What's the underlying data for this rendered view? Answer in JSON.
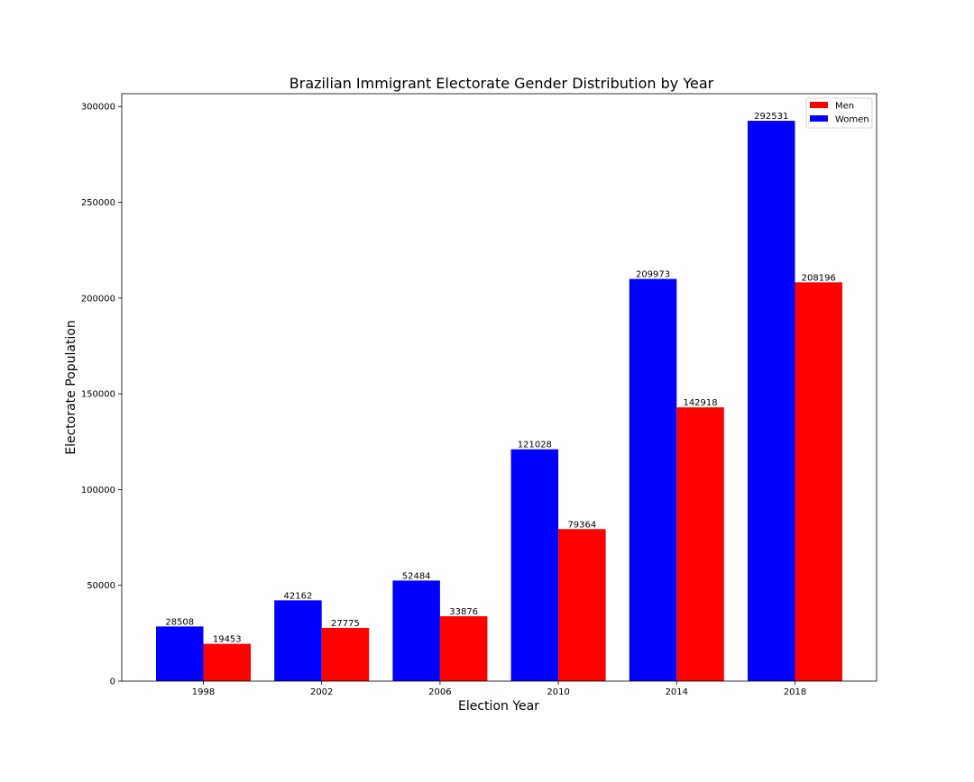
{
  "chart_data": {
    "type": "bar",
    "title": "Brazilian Immigrant Electorate Gender Distribution by Year",
    "xlabel": "Election Year",
    "ylabel": "Electorate Population",
    "categories": [
      "1998",
      "2002",
      "2006",
      "2010",
      "2014",
      "2018"
    ],
    "series": [
      {
        "name": "Women",
        "color": "#0000ff",
        "values": [
          28508,
          42162,
          52484,
          121028,
          209973,
          292531
        ]
      },
      {
        "name": "Men",
        "color": "#ff0000",
        "values": [
          19453,
          27775,
          33876,
          79364,
          142918,
          208196
        ]
      }
    ],
    "legend_order": [
      "Men",
      "Women"
    ],
    "legend_position": "top-right",
    "ylim": [
      0,
      306681
    ],
    "yticks": [
      0,
      50000,
      100000,
      150000,
      200000,
      250000,
      300000
    ],
    "grid": false
  }
}
